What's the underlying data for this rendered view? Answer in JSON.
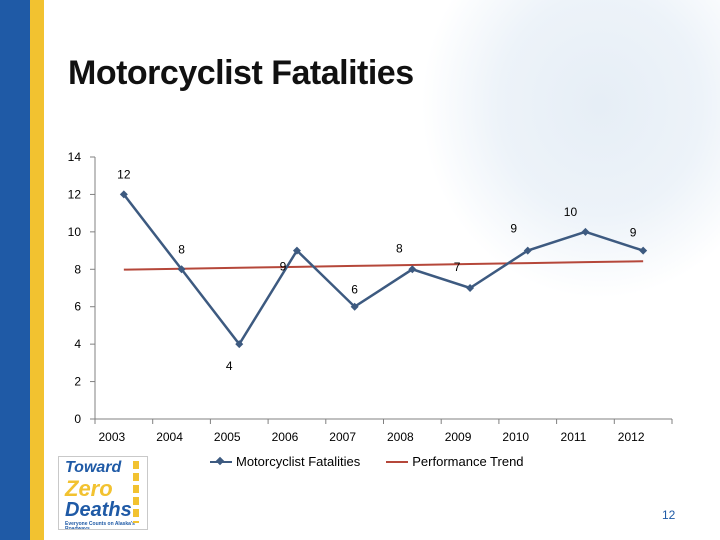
{
  "slide": {
    "title": "Motorcyclist Fatalities",
    "page_number": "12",
    "logo": {
      "line1": "Toward",
      "line2": "Zero",
      "line3": "Deaths",
      "tagline": "Everyone Counts on Alaska's Roadways"
    }
  },
  "colors": {
    "fatalities_series": "#3d5a80",
    "trend_series": "#b5473a",
    "axis": "#808080",
    "left_bar_blue": "#1f5aa6",
    "left_bar_yellow": "#f2c230"
  },
  "chart_data": {
    "type": "line",
    "title": "",
    "xlabel": "",
    "ylabel": "",
    "categories": [
      "2003",
      "2004",
      "2005",
      "2006",
      "2007",
      "2008",
      "2009",
      "2010",
      "2011",
      "2012"
    ],
    "ylim": [
      0,
      14
    ],
    "yticks": [
      0,
      2,
      4,
      6,
      8,
      10,
      12,
      14
    ],
    "grid": false,
    "legend_position": "bottom",
    "series": [
      {
        "name": "Motorcyclist Fatalities",
        "values": [
          12,
          8,
          4,
          9,
          6,
          8,
          7,
          9,
          10,
          9
        ],
        "data_labels": [
          "12",
          "8",
          "4",
          "9",
          "6",
          "8",
          "7",
          "9",
          "10",
          "9"
        ],
        "marker": "diamond"
      },
      {
        "name": "Performance Trend",
        "values": [
          7.98,
          8.03,
          8.08,
          8.13,
          8.18,
          8.23,
          8.28,
          8.33,
          8.38,
          8.43
        ],
        "marker": "none"
      }
    ]
  }
}
